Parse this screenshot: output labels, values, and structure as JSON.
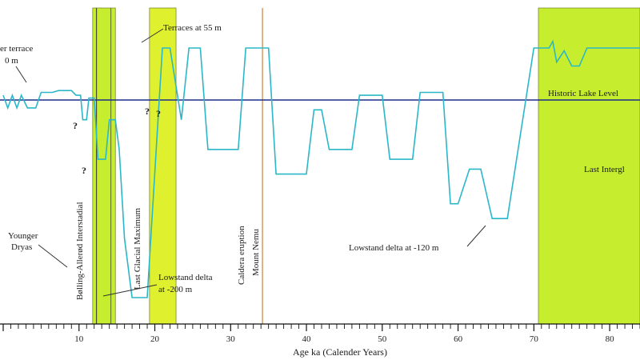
{
  "chart_data": {
    "type": "line",
    "title": "",
    "xlabel": "Age ka (Calender Years)",
    "ylabel": "",
    "xlim": [
      0,
      84
    ],
    "ylim": [
      -230,
      80
    ],
    "grid": false,
    "x_ticks": [
      10,
      20,
      30,
      40,
      50,
      60,
      70,
      80
    ],
    "reference_line": {
      "label": "Historic Lake Level",
      "y": 0,
      "color": "#1c2f8c"
    },
    "series": [
      {
        "name": "",
        "color": "#2bb7c9",
        "points": [
          [
            0,
            5
          ],
          [
            0.6,
            -8
          ],
          [
            1.2,
            5
          ],
          [
            1.8,
            -8
          ],
          [
            2.4,
            5
          ],
          [
            3.2,
            -8
          ],
          [
            4.3,
            -8
          ],
          [
            5,
            8
          ],
          [
            6.5,
            8
          ],
          [
            7.3,
            10
          ],
          [
            9,
            10
          ],
          [
            9.6,
            5
          ],
          [
            10.2,
            5
          ],
          [
            10.5,
            -20
          ],
          [
            11,
            -20
          ],
          [
            11.3,
            2
          ],
          [
            12,
            2
          ],
          [
            12.5,
            -60
          ],
          [
            13.5,
            -60
          ],
          [
            14,
            -20
          ],
          [
            14.8,
            -20
          ],
          [
            15.3,
            -50
          ],
          [
            16,
            -140
          ],
          [
            17,
            -200
          ],
          [
            19,
            -200
          ],
          [
            21,
            55
          ],
          [
            22,
            55
          ],
          [
            23.5,
            -20
          ],
          [
            24.5,
            55
          ],
          [
            26,
            55
          ],
          [
            27,
            -50
          ],
          [
            31,
            -50
          ],
          [
            32,
            55
          ],
          [
            35,
            55
          ],
          [
            36,
            -75
          ],
          [
            40,
            -75
          ],
          [
            41,
            -10
          ],
          [
            42,
            -10
          ],
          [
            43,
            -50
          ],
          [
            46,
            -50
          ],
          [
            47,
            5
          ],
          [
            50,
            5
          ],
          [
            51,
            -60
          ],
          [
            54,
            -60
          ],
          [
            55,
            8
          ],
          [
            58,
            8
          ],
          [
            59,
            -105
          ],
          [
            60,
            -105
          ],
          [
            61.5,
            -70
          ],
          [
            63,
            -70
          ],
          [
            64.5,
            -120
          ],
          [
            66.5,
            -120
          ],
          [
            70,
            55
          ],
          [
            72,
            55
          ],
          [
            72.5,
            62
          ],
          [
            73,
            40
          ],
          [
            74,
            52
          ],
          [
            75,
            36
          ],
          [
            76,
            36
          ],
          [
            77,
            55
          ],
          [
            84,
            55
          ]
        ]
      }
    ],
    "bands": [
      {
        "x0": 11.8,
        "x1": 14.8,
        "color": "#c6ee2e"
      },
      {
        "x0": 19.3,
        "x1": 22.8,
        "color": "#dff02e"
      },
      {
        "x0": 70.6,
        "x1": 84,
        "color": "#c6ee2e"
      }
    ],
    "vlines": [
      {
        "x": 12.3,
        "color": "#4a4a2a"
      },
      {
        "x": 14.2,
        "color": "#6b7a2a"
      },
      {
        "x": 34.2,
        "color": "#c8813c"
      }
    ],
    "annotations": {
      "upper_terrace": [
        "er terrace",
        "0 m"
      ],
      "terraces_55": "Terraces at 55 m",
      "younger_dryas": [
        "Younger",
        "Dryas"
      ],
      "bolling_allerod": "Bølling-Allerød Interstadial",
      "lgm": "Last Glacial Maximum",
      "caldera": "Caldera eruption",
      "mount_nemu": "Mount Nemu",
      "lowstand_200": [
        "Lowstand delta",
        "at -200 m"
      ],
      "lowstand_120": "Lowstand delta at -120 m",
      "last_interglacial": "Last Intergl",
      "question_mark": "?"
    }
  }
}
